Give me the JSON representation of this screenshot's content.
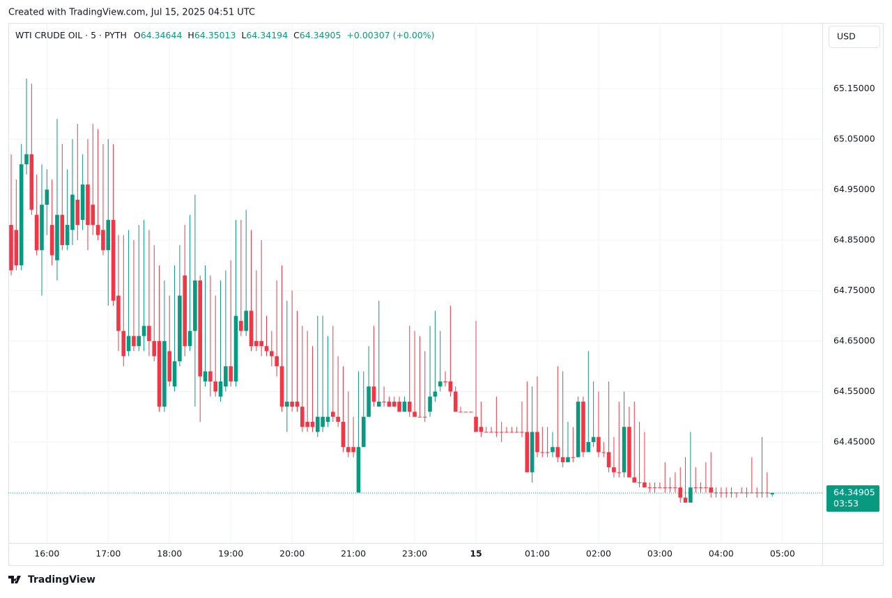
{
  "created": "Created with TradingView.com, Jul 15, 2025 04:51 UTC",
  "chart_data": {
    "type": "candlestick",
    "symbol": "WTI CRUDE OIL · 5 · PYTH",
    "legend_labels": {
      "open": "O",
      "high": "H",
      "low": "L",
      "close": "C"
    },
    "change": "+0.00307 (+0.00%)",
    "currency": "USD",
    "countdown": "03:53",
    "up_color": "#089981",
    "down_color": "#f23645",
    "grid": true,
    "x": [
      "15:25",
      "15:30",
      "15:35",
      "15:40",
      "15:45",
      "15:50",
      "15:55",
      "16:00",
      "16:05",
      "16:10",
      "16:15",
      "16:20",
      "16:25",
      "16:30",
      "16:35",
      "16:40",
      "16:45",
      "16:50",
      "16:55",
      "17:00",
      "17:05",
      "17:10",
      "17:15",
      "17:20",
      "17:25",
      "17:30",
      "17:35",
      "17:40",
      "17:45",
      "17:50",
      "17:55",
      "18:00",
      "18:05",
      "18:10",
      "18:15",
      "18:20",
      "18:25",
      "18:30",
      "18:35",
      "18:40",
      "18:45",
      "18:50",
      "18:55",
      "19:00",
      "19:05",
      "19:10",
      "19:15",
      "19:20",
      "19:25",
      "19:30",
      "19:35",
      "19:40",
      "19:45",
      "19:50",
      "19:55",
      "20:00",
      "20:05",
      "20:10",
      "20:15",
      "20:20",
      "20:25",
      "20:30",
      "20:35",
      "20:40",
      "20:45",
      "20:50",
      "20:55",
      "21:00",
      "21:05",
      "21:10",
      "21:15",
      "21:20",
      "21:25",
      "21:30",
      "21:35",
      "21:40",
      "21:45",
      "21:50",
      "21:55",
      "23:00",
      "23:05",
      "23:10",
      "23:15",
      "23:20",
      "23:25",
      "23:30",
      "23:35",
      "23:40",
      "23:45",
      "23:50",
      "23:55",
      "00:00",
      "00:05",
      "00:10",
      "00:15",
      "00:20",
      "00:25",
      "00:30",
      "00:35",
      "00:40",
      "00:45",
      "00:50",
      "00:55",
      "01:00",
      "01:05",
      "01:10",
      "01:15",
      "01:20",
      "01:25",
      "01:30",
      "01:35",
      "01:40",
      "01:45",
      "01:50",
      "01:55",
      "02:00",
      "02:05",
      "02:10",
      "02:15",
      "02:20",
      "02:25",
      "02:30",
      "02:35",
      "02:40",
      "02:45",
      "02:50",
      "02:55",
      "03:00",
      "03:05",
      "03:10",
      "03:15",
      "03:20",
      "03:25",
      "03:30",
      "03:35",
      "03:40",
      "03:45",
      "03:50",
      "03:55",
      "04:00",
      "04:05",
      "04:10",
      "04:15",
      "04:20",
      "04:25",
      "04:30",
      "04:35",
      "04:40",
      "04:45",
      "04:50"
    ],
    "open": [
      64.88,
      64.87,
      64.8,
      65.0,
      65.02,
      64.9,
      64.83,
      64.92,
      64.88,
      64.81,
      64.9,
      64.84,
      64.87,
      64.93,
      64.89,
      64.96,
      64.92,
      64.88,
      64.87,
      64.83,
      64.89,
      64.74,
      64.67,
      64.63,
      64.66,
      64.64,
      64.66,
      64.68,
      64.65,
      64.65,
      64.52,
      64.63,
      64.56,
      64.61,
      64.78,
      64.64,
      64.67,
      64.77,
      64.57,
      64.59,
      64.57,
      64.54,
      64.56,
      64.6,
      64.57,
      64.69,
      64.67,
      64.71,
      64.65,
      64.65,
      64.64,
      64.63,
      64.62,
      64.6,
      64.52,
      64.53,
      64.53,
      64.52,
      64.49,
      64.49,
      64.47,
      64.48,
      64.49,
      64.51,
      64.5,
      64.49,
      64.44,
      64.44,
      64.35,
      64.44,
      64.5,
      64.56,
      64.52,
      64.53,
      64.53,
      64.53,
      64.53,
      64.51,
      64.53,
      64.51,
      64.5,
      64.5,
      64.51,
      64.54,
      64.56,
      64.57,
      64.57,
      64.55,
      64.51,
      64.51,
      64.51,
      64.5,
      64.48,
      64.47,
      64.47,
      64.47,
      64.47,
      64.47,
      64.47,
      64.47,
      64.47,
      64.47,
      64.39,
      64.47,
      64.43,
      64.43,
      64.43,
      64.44,
      64.42,
      64.41,
      64.42,
      64.42,
      64.53,
      64.43,
      64.45,
      64.46,
      64.43,
      64.43,
      64.4,
      64.39,
      64.39,
      64.48,
      64.38,
      64.37,
      64.37,
      64.36,
      64.36,
      64.36,
      64.36,
      64.36,
      64.36,
      64.36,
      64.34,
      64.33,
      64.36,
      64.36,
      64.36,
      64.36,
      64.35,
      64.35,
      64.35,
      64.35,
      64.35,
      64.35,
      64.35,
      64.35,
      64.35,
      64.35,
      64.35,
      64.34644
    ],
    "high": [
      65.02,
      64.97,
      65.04,
      65.17,
      65.16,
      64.98,
      65.0,
      64.99,
      64.97,
      65.09,
      65.04,
      64.99,
      65.05,
      65.08,
      65.02,
      65.05,
      65.08,
      65.07,
      65.04,
      65.05,
      65.04,
      64.86,
      64.86,
      64.87,
      64.85,
      64.88,
      64.89,
      64.87,
      64.84,
      64.8,
      64.77,
      64.74,
      64.8,
      64.84,
      64.88,
      64.9,
      64.94,
      64.78,
      64.8,
      64.78,
      64.74,
      64.77,
      64.79,
      64.81,
      64.89,
      64.89,
      64.91,
      64.87,
      64.79,
      64.85,
      64.7,
      64.67,
      64.77,
      64.8,
      64.73,
      64.75,
      64.71,
      64.68,
      64.67,
      64.64,
      64.7,
      64.7,
      64.66,
      64.68,
      64.62,
      64.6,
      64.55,
      64.5,
      64.59,
      64.59,
      64.64,
      64.68,
      64.73,
      64.56,
      64.54,
      64.54,
      64.54,
      64.54,
      64.68,
      64.67,
      64.66,
      64.63,
      64.68,
      64.71,
      64.67,
      64.59,
      64.72,
      64.56,
      64.52,
      64.51,
      64.51,
      64.69,
      64.53,
      64.48,
      64.48,
      64.54,
      64.49,
      64.48,
      64.48,
      64.48,
      64.53,
      64.57,
      64.56,
      64.58,
      64.48,
      64.48,
      64.47,
      64.6,
      64.59,
      64.49,
      64.48,
      64.54,
      64.54,
      64.63,
      64.57,
      64.55,
      64.45,
      64.57,
      64.46,
      64.53,
      64.55,
      64.52,
      64.53,
      64.49,
      64.47,
      64.37,
      64.37,
      64.37,
      64.41,
      64.38,
      64.39,
      64.4,
      64.42,
      64.47,
      64.4,
      64.37,
      64.41,
      64.43,
      64.36,
      64.36,
      64.36,
      64.36,
      64.35,
      64.36,
      64.36,
      64.42,
      64.36,
      64.46,
      64.39,
      64.35013
    ],
    "low": [
      64.78,
      64.79,
      64.79,
      64.98,
      64.9,
      64.82,
      64.74,
      64.86,
      64.8,
      64.77,
      64.83,
      64.83,
      64.84,
      64.85,
      64.87,
      64.83,
      64.86,
      64.85,
      64.82,
      64.72,
      64.72,
      64.63,
      64.6,
      64.62,
      64.63,
      64.63,
      64.63,
      64.62,
      64.61,
      64.51,
      64.51,
      64.56,
      64.55,
      64.6,
      64.62,
      64.63,
      64.52,
      64.49,
      64.56,
      64.54,
      64.54,
      64.53,
      64.55,
      64.56,
      64.56,
      64.66,
      64.66,
      64.63,
      64.63,
      64.62,
      64.62,
      64.6,
      64.58,
      64.51,
      64.47,
      64.51,
      64.51,
      64.47,
      64.47,
      64.47,
      64.46,
      64.47,
      64.48,
      64.49,
      64.48,
      64.43,
      64.42,
      64.42,
      64.35,
      64.44,
      64.5,
      64.52,
      64.52,
      64.52,
      64.52,
      64.52,
      64.51,
      64.51,
      64.5,
      64.5,
      64.5,
      64.49,
      64.5,
      64.53,
      64.55,
      64.56,
      64.54,
      64.51,
      64.51,
      64.51,
      64.51,
      64.47,
      64.46,
      64.47,
      64.47,
      64.46,
      64.45,
      64.47,
      64.47,
      64.47,
      64.46,
      64.39,
      64.37,
      64.42,
      64.42,
      64.42,
      64.42,
      64.41,
      64.4,
      64.41,
      64.41,
      64.42,
      64.42,
      64.43,
      64.44,
      64.42,
      64.42,
      64.39,
      64.38,
      64.38,
      64.38,
      64.38,
      64.37,
      64.36,
      64.36,
      64.35,
      64.35,
      64.36,
      64.35,
      64.35,
      64.35,
      64.33,
      64.33,
      64.33,
      64.35,
      64.35,
      64.35,
      64.34,
      64.34,
      64.34,
      64.34,
      64.34,
      64.34,
      64.35,
      64.34,
      64.35,
      64.34,
      64.34,
      64.34,
      64.34194
    ],
    "close": [
      64.79,
      64.8,
      65.0,
      65.02,
      64.91,
      64.83,
      64.92,
      64.95,
      64.82,
      64.9,
      64.84,
      64.88,
      64.94,
      64.88,
      64.96,
      64.88,
      64.88,
      64.86,
      64.83,
      64.89,
      64.73,
      64.67,
      64.62,
      64.66,
      64.64,
      64.66,
      64.68,
      64.65,
      64.62,
      64.52,
      64.65,
      64.57,
      64.61,
      64.74,
      64.64,
      64.67,
      64.77,
      64.58,
      64.59,
      64.57,
      64.55,
      64.57,
      64.6,
      64.57,
      64.7,
      64.67,
      64.71,
      64.64,
      64.64,
      64.64,
      64.63,
      64.62,
      64.6,
      64.52,
      64.53,
      64.52,
      64.52,
      64.48,
      64.48,
      64.48,
      64.5,
      64.5,
      64.5,
      64.5,
      64.49,
      64.44,
      64.43,
      64.43,
      64.44,
      64.5,
      64.56,
      64.53,
      64.53,
      64.53,
      64.52,
      64.52,
      64.51,
      64.53,
      64.51,
      64.5,
      64.5,
      64.5,
      64.54,
      64.55,
      64.57,
      64.57,
      64.55,
      64.51,
      64.51,
      64.51,
      64.51,
      64.47,
      64.47,
      64.47,
      64.47,
      64.47,
      64.47,
      64.47,
      64.47,
      64.47,
      64.47,
      64.39,
      64.47,
      64.43,
      64.43,
      64.43,
      64.44,
      64.42,
      64.41,
      64.42,
      64.42,
      64.53,
      64.43,
      64.45,
      64.46,
      64.43,
      64.43,
      64.4,
      64.39,
      64.39,
      64.48,
      64.38,
      64.37,
      64.37,
      64.36,
      64.36,
      64.36,
      64.36,
      64.36,
      64.36,
      64.36,
      64.34,
      64.33,
      64.36,
      64.36,
      64.36,
      64.36,
      64.35,
      64.35,
      64.35,
      64.35,
      64.35,
      64.35,
      64.35,
      64.35,
      64.35,
      64.35,
      64.35,
      64.35,
      64.34905
    ],
    "ylim": [
      64.25,
      65.28
    ],
    "yticks": [
      {
        "value": 65.15,
        "label": "65.15000"
      },
      {
        "value": 65.05,
        "label": "65.05000"
      },
      {
        "value": 64.95,
        "label": "64.95000"
      },
      {
        "value": 64.85,
        "label": "64.85000"
      },
      {
        "value": 64.75,
        "label": "64.75000"
      },
      {
        "value": 64.65,
        "label": "64.65000"
      },
      {
        "value": 64.55,
        "label": "64.55000"
      },
      {
        "value": 64.45,
        "label": "64.45000"
      }
    ],
    "xticks": [
      "16:00",
      "17:00",
      "18:00",
      "19:00",
      "20:00",
      "21:00",
      "23:00",
      {
        "value": "00:00",
        "label": "15"
      },
      "01:00",
      "02:00",
      "03:00",
      "04:00",
      "05:00"
    ]
  },
  "footer": "TradingView"
}
